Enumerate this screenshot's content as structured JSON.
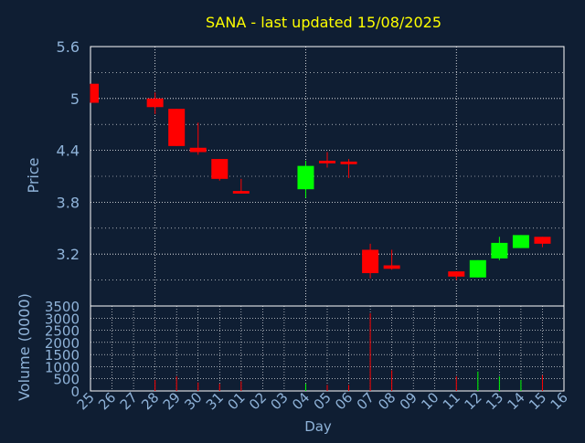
{
  "chart_data": {
    "type": "candlestick",
    "title": "SANA - last updated 15/08/2025",
    "xlabel": "Day",
    "ylabel_price": "Price",
    "ylabel_volume": "Volume (0000)",
    "x_ticks": [
      "25",
      "26",
      "27",
      "28",
      "29",
      "30",
      "31",
      "01",
      "02",
      "03",
      "04",
      "05",
      "06",
      "07",
      "08",
      "09",
      "10",
      "11",
      "12",
      "13",
      "14",
      "15",
      "16"
    ],
    "price_ylim": [
      2.6,
      5.6
    ],
    "price_ticks": [
      "5.6",
      "5",
      "4.4",
      "3.8",
      "3.2"
    ],
    "volume_ylim": [
      0,
      3500
    ],
    "volume_ticks": [
      "3500",
      "3000",
      "2500",
      "2000",
      "1500",
      "1000",
      "500",
      "0"
    ],
    "grid": true,
    "colors": {
      "background": "#0f1e33",
      "up": "#00ff00",
      "down": "#ff0000",
      "title": "#ffff00",
      "axis_text": "#8fb3d9"
    },
    "candles": [
      {
        "day": "25",
        "open": 5.17,
        "high": 5.17,
        "low": 4.95,
        "close": 4.95,
        "volume": 0
      },
      {
        "day": "28",
        "open": 5.0,
        "high": 5.07,
        "low": 4.82,
        "close": 4.9,
        "volume": 450
      },
      {
        "day": "29",
        "open": 4.88,
        "high": 4.88,
        "low": 4.45,
        "close": 4.45,
        "volume": 600
      },
      {
        "day": "30",
        "open": 4.43,
        "high": 4.72,
        "low": 4.35,
        "close": 4.38,
        "volume": 350
      },
      {
        "day": "31",
        "open": 4.3,
        "high": 4.3,
        "low": 4.05,
        "close": 4.07,
        "volume": 300
      },
      {
        "day": "01",
        "open": 3.93,
        "high": 4.07,
        "low": 3.9,
        "close": 3.9,
        "volume": 400
      },
      {
        "day": "04",
        "open": 3.95,
        "high": 4.28,
        "low": 3.85,
        "close": 4.22,
        "volume": 300
      },
      {
        "day": "05",
        "open": 4.28,
        "high": 4.38,
        "low": 4.2,
        "close": 4.25,
        "volume": 250
      },
      {
        "day": "06",
        "open": 4.27,
        "high": 4.3,
        "low": 4.08,
        "close": 4.24,
        "volume": 250
      },
      {
        "day": "07",
        "open": 3.25,
        "high": 3.32,
        "low": 2.92,
        "close": 2.98,
        "volume": 3200
      },
      {
        "day": "08",
        "open": 3.07,
        "high": 3.25,
        "low": 3.02,
        "close": 3.03,
        "volume": 850
      },
      {
        "day": "11",
        "open": 3.0,
        "high": 3.0,
        "low": 2.9,
        "close": 2.94,
        "volume": 600
      },
      {
        "day": "12",
        "open": 2.93,
        "high": 3.13,
        "low": 2.93,
        "close": 3.13,
        "volume": 800
      },
      {
        "day": "13",
        "open": 3.15,
        "high": 3.4,
        "low": 3.13,
        "close": 3.33,
        "volume": 600
      },
      {
        "day": "14",
        "open": 3.27,
        "high": 3.42,
        "low": 3.27,
        "close": 3.42,
        "volume": 450
      },
      {
        "day": "15",
        "open": 3.4,
        "high": 3.4,
        "low": 3.28,
        "close": 3.32,
        "volume": 650
      }
    ]
  }
}
